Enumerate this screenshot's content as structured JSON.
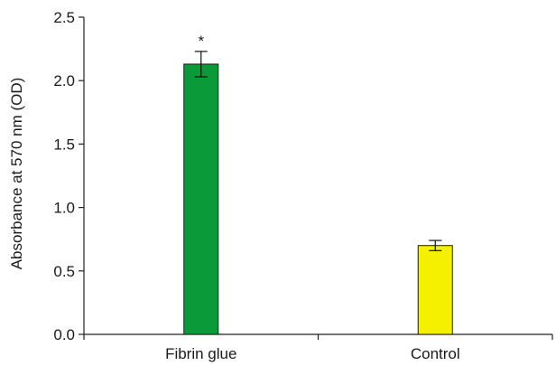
{
  "chart_data": {
    "type": "bar",
    "title": "",
    "xlabel": "",
    "ylabel": "Absorbance at 570 nm (OD)",
    "categories": [
      "Fibrin glue",
      "Control"
    ],
    "values": [
      2.13,
      0.7
    ],
    "errors": [
      0.1,
      0.04
    ],
    "colors": [
      "#0a9a3a",
      "#f5f000"
    ],
    "ylim": [
      0,
      2.5
    ],
    "yticks": [
      "0.0",
      "0.5",
      "1.0",
      "1.5",
      "2.0",
      "2.5"
    ],
    "annotations": [
      "*",
      ""
    ],
    "grid": false,
    "legend": "none"
  }
}
